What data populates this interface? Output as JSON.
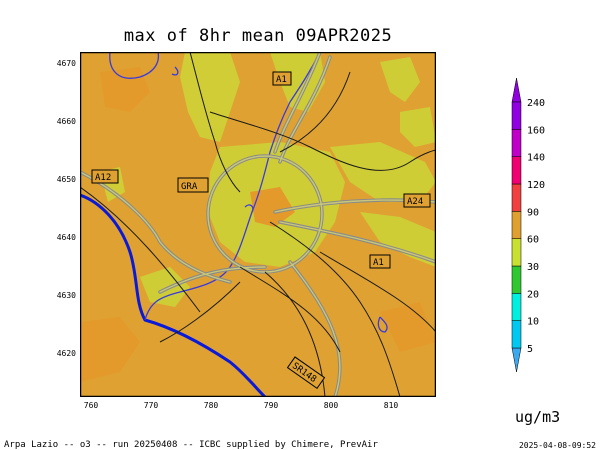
{
  "title": "max of 8hr mean 09APR2025",
  "footer": "Arpa Lazio -- o3 -- run 20250408 -- ICBC supplied by Chimere, PrevAir",
  "timestamp": "2025-04-08-09:52",
  "unit": "ug/m3",
  "y_ticks": [
    "4670",
    "4660",
    "4650",
    "4640",
    "4630",
    "4620"
  ],
  "x_ticks": [
    "760",
    "770",
    "780",
    "790",
    "800",
    "810"
  ],
  "colorbar": {
    "levels": [
      "5",
      "10",
      "20",
      "30",
      "60",
      "90",
      "120",
      "140",
      "160",
      "240"
    ],
    "colors": [
      "#3aa9f0",
      "#00c8f0",
      "#00f0e0",
      "#30c830",
      "#c8e030",
      "#e0a030",
      "#f04040",
      "#f00070",
      "#c000c8",
      "#9000e0"
    ]
  },
  "road_labels": [
    "A1",
    "A12",
    "GRA",
    "A24",
    "A1",
    "SR148"
  ],
  "map_colors": {
    "background": "#dfa232",
    "orange": "#e39a2b",
    "yellow": "#cfd037",
    "coast": "#0a1ad8",
    "river": "#3a3adc",
    "road": "#7a7a7a"
  }
}
